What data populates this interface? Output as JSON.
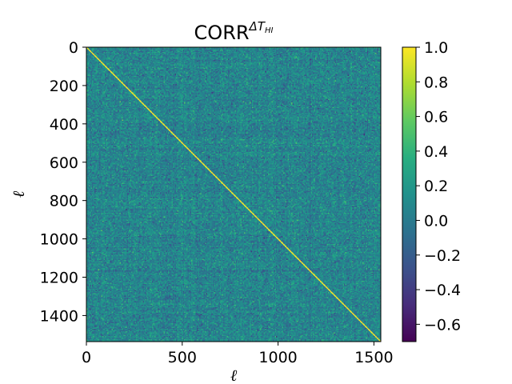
{
  "chart_data": {
    "type": "heatmap",
    "title": {
      "base": "CORR",
      "superscript": "ΔT",
      "superscript_subscript": "HI"
    },
    "xlabel": "ℓ",
    "ylabel": "ℓ",
    "xlim": [
      0,
      1536
    ],
    "ylim": [
      1536,
      0
    ],
    "x_ticks": [
      0,
      500,
      1000,
      1500
    ],
    "x_tick_labels": [
      "0",
      "500",
      "1000",
      "1500"
    ],
    "y_ticks": [
      0,
      200,
      400,
      600,
      800,
      1000,
      1200,
      1400
    ],
    "y_tick_labels": [
      "0",
      "200",
      "400",
      "600",
      "800",
      "1000",
      "1200",
      "1400"
    ],
    "colormap": "viridis",
    "value_range": [
      -0.7,
      1.0
    ],
    "typical_off_diagonal_range": [
      -0.3,
      0.45
    ],
    "diagonal_value": 1.0,
    "colorbar": {
      "ticks": [
        1.0,
        0.8,
        0.6,
        0.4,
        0.2,
        0.0,
        -0.2,
        -0.4,
        -0.6
      ],
      "tick_labels": [
        "1.0",
        "0.8",
        "0.6",
        "0.4",
        "0.2",
        "0.0",
        "−0.2",
        "−0.4",
        "−0.6"
      ]
    },
    "grid": false
  }
}
